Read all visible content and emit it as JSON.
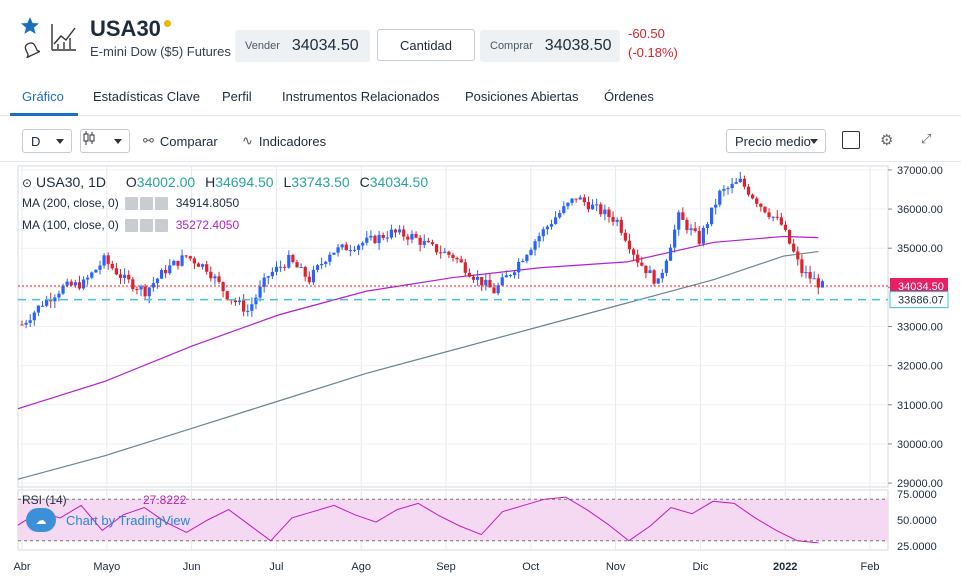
{
  "header": {
    "symbol": "USA30",
    "subtitle": "E-mini Dow ($5) Futures",
    "sell_label": "Vender",
    "sell_price": "34034.50",
    "quantity_label": "Cantidad",
    "buy_label": "Comprar",
    "buy_price": "34038.50",
    "change_abs": "-60.50",
    "change_pct": "(-0.18%)",
    "icons": [
      "star-icon",
      "bell-icon",
      "chart-icon"
    ]
  },
  "tabs": [
    {
      "label": "Gráfico",
      "active": true
    },
    {
      "label": "Estadísticas Clave"
    },
    {
      "label": "Perfil"
    },
    {
      "label": "Instrumentos Relacionados"
    },
    {
      "label": "Posiciones Abiertas"
    },
    {
      "label": "Órdenes"
    }
  ],
  "toolbar": {
    "interval": "D",
    "compare_label": "Comparar",
    "indicators_label": "Indicadores",
    "price_type": "Precio medio"
  },
  "legend": {
    "title": "USA30, 1D",
    "o_label": "O",
    "o_value": "34002.00",
    "h_label": "H",
    "h_value": "34694.50",
    "l_label": "L",
    "l_value": "33743.50",
    "c_label": "C",
    "c_value": "34034.50"
  },
  "indicators": {
    "ma200_label": "MA (200, close, 0)",
    "ma200_value": "34914.8050",
    "ma100_label": "MA (100, close, 0)",
    "ma100_value": "35272.4050",
    "rsi_label": "RSI (14)",
    "rsi_value": "27.8222"
  },
  "tradingview": {
    "label": "Chart by TradingView"
  },
  "colors": {
    "up": "#2962ff",
    "down": "#e0202c",
    "ma100": "#b31ed6",
    "ma200": "#6b8590",
    "rsi": "#c21cb9",
    "accent": "#1c6fbf"
  },
  "chart_data": {
    "type": "candlestick",
    "x_ticks": [
      "Abr",
      "Mayo",
      "Jun",
      "Jul",
      "Ago",
      "Sep",
      "Oct",
      "Nov",
      "Dic",
      "2022",
      "Feb"
    ],
    "y_ticks": [
      "37000.00",
      "36000.00",
      "35000.00",
      "34000.00",
      "33000.00",
      "32000.00",
      "31000.00",
      "30000.00",
      "29000.00"
    ],
    "ylim": [
      28900,
      37100
    ],
    "last_price_label": "34034.50",
    "dashed_level_label": "33686.07",
    "last_price": 34034.5,
    "dashed_level": 33686.07,
    "close_path": [
      [
        "Abr",
        33050
      ],
      [
        "Abr",
        33600
      ],
      [
        "Abr",
        34000
      ],
      [
        "Mayo",
        34100
      ],
      [
        "Mayo",
        34700
      ],
      [
        "Mayo",
        34200
      ],
      [
        "Mayo",
        33900
      ],
      [
        "Jun",
        34450
      ],
      [
        "Jun",
        34800
      ],
      [
        "Jun",
        34500
      ],
      [
        "Jun",
        33800
      ],
      [
        "Jun",
        33400
      ],
      [
        "Jul",
        34300
      ],
      [
        "Jul",
        34700
      ],
      [
        "Jul",
        34200
      ],
      [
        "Jul",
        34900
      ],
      [
        "Ago",
        35050
      ],
      [
        "Ago",
        35200
      ],
      [
        "Ago",
        35400
      ],
      [
        "Sep",
        35300
      ],
      [
        "Sep",
        35000
      ],
      [
        "Sep",
        34800
      ],
      [
        "Sep",
        34300
      ],
      [
        "Oct",
        33900
      ],
      [
        "Oct",
        34500
      ],
      [
        "Oct",
        35200
      ],
      [
        "Nov",
        35800
      ],
      [
        "Nov",
        36300
      ],
      [
        "Nov",
        36000
      ],
      [
        "Nov",
        35700
      ],
      [
        "Dic",
        34700
      ],
      [
        "Dic",
        34100
      ],
      [
        "Dic",
        35800
      ],
      [
        "Dic",
        35200
      ],
      [
        "2022",
        36400
      ],
      [
        "2022",
        36700
      ],
      [
        "2022",
        36100
      ],
      [
        "2022",
        35600
      ],
      [
        "2022",
        34400
      ],
      [
        "2022",
        34030
      ]
    ],
    "ma100": [
      [
        0,
        30900
      ],
      [
        0.1,
        31600
      ],
      [
        0.2,
        32500
      ],
      [
        0.3,
        33300
      ],
      [
        0.4,
        33900
      ],
      [
        0.5,
        34250
      ],
      [
        0.6,
        34500
      ],
      [
        0.7,
        34650
      ],
      [
        0.8,
        35150
      ],
      [
        0.88,
        35300
      ],
      [
        0.92,
        35270
      ]
    ],
    "ma200": [
      [
        0,
        29100
      ],
      [
        0.1,
        29700
      ],
      [
        0.2,
        30400
      ],
      [
        0.3,
        31100
      ],
      [
        0.4,
        31800
      ],
      [
        0.5,
        32400
      ],
      [
        0.6,
        33000
      ],
      [
        0.7,
        33600
      ],
      [
        0.8,
        34200
      ],
      [
        0.88,
        34800
      ],
      [
        0.92,
        34915
      ]
    ],
    "rsi": {
      "y_ticks": [
        "75.0000",
        "50.0000",
        "25.0000"
      ],
      "ylim": [
        25,
        75
      ],
      "values": [
        45,
        58,
        52,
        64,
        40,
        55,
        62,
        48,
        38,
        50,
        60,
        45,
        30,
        52,
        58,
        64,
        55,
        48,
        60,
        66,
        54,
        44,
        36,
        58,
        64,
        70,
        72,
        60,
        46,
        30,
        44,
        62,
        56,
        68,
        66,
        52,
        40,
        30,
        28
      ]
    }
  }
}
